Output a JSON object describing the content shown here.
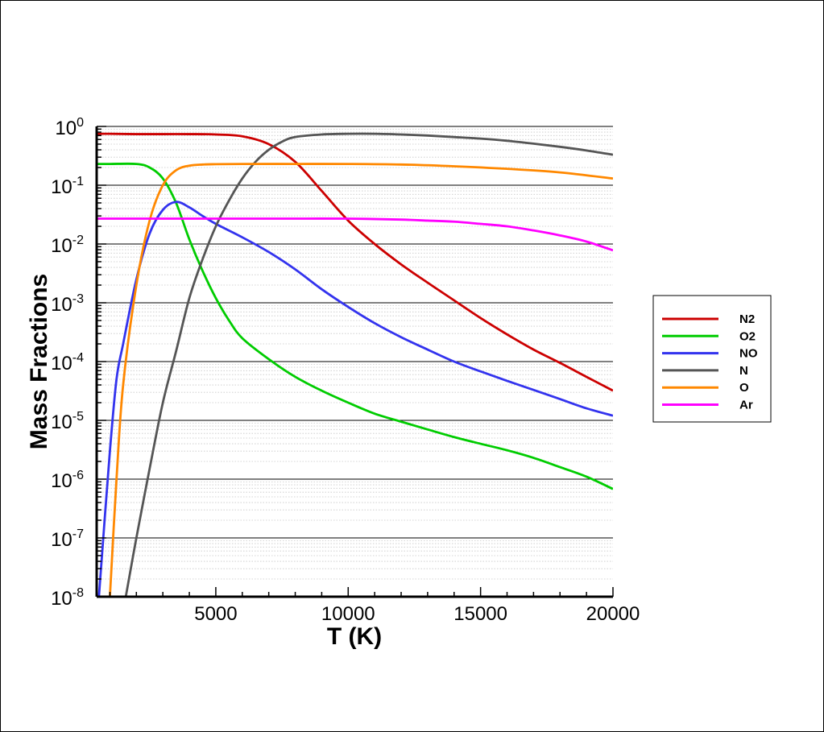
{
  "chart_data": {
    "type": "line",
    "xlabel": "T (K)",
    "ylabel": "Mass Fractions",
    "xlim": [
      500,
      20000
    ],
    "ylim": [
      1e-08,
      1
    ],
    "yscale": "log",
    "xticks": [
      {
        "value": 5000,
        "label": "5000"
      },
      {
        "value": 10000,
        "label": "10000"
      },
      {
        "value": 15000,
        "label": "15000"
      },
      {
        "value": 20000,
        "label": "20000"
      }
    ],
    "yticks": [
      {
        "value": 1,
        "base": "10",
        "exp": "0"
      },
      {
        "value": 0.1,
        "base": "10",
        "exp": "-1"
      },
      {
        "value": 0.01,
        "base": "10",
        "exp": "-2"
      },
      {
        "value": 0.001,
        "base": "10",
        "exp": "-3"
      },
      {
        "value": 0.0001,
        "base": "10",
        "exp": "-4"
      },
      {
        "value": 1e-05,
        "base": "10",
        "exp": "-5"
      },
      {
        "value": 1e-06,
        "base": "10",
        "exp": "-6"
      },
      {
        "value": 1e-07,
        "base": "10",
        "exp": "-7"
      },
      {
        "value": 1e-08,
        "base": "10",
        "exp": "-8"
      }
    ],
    "grid": "horizontal major and minor lines",
    "legend_position": "right",
    "series": [
      {
        "name": "N2",
        "color": "#cc0000",
        "x": [
          500,
          1000,
          2000,
          3000,
          4000,
          5000,
          6000,
          7000,
          8000,
          9000,
          10000,
          11000,
          12000,
          13000,
          14000,
          15000,
          16000,
          17000,
          18000,
          19000,
          20000
        ],
        "y": [
          0.75,
          0.75,
          0.74,
          0.74,
          0.74,
          0.73,
          0.68,
          0.5,
          0.25,
          0.08,
          0.025,
          0.01,
          0.0045,
          0.0022,
          0.0011,
          0.00055,
          0.00029,
          0.00016,
          9.5e-05,
          5.5e-05,
          3.2e-05
        ]
      },
      {
        "name": "O2",
        "color": "#00cc00",
        "x": [
          500,
          1000,
          2000,
          2500,
          3000,
          3500,
          4000,
          4500,
          5000,
          5500,
          6000,
          7000,
          8000,
          9000,
          10000,
          11000,
          12000,
          13000,
          14000,
          15000,
          16000,
          17000,
          18000,
          19000,
          20000
        ],
        "y": [
          0.23,
          0.23,
          0.23,
          0.2,
          0.13,
          0.05,
          0.012,
          0.0035,
          0.0012,
          0.0005,
          0.00025,
          0.00011,
          5.5e-05,
          3.2e-05,
          2e-05,
          1.3e-05,
          9.5e-06,
          7e-06,
          5.2e-06,
          4e-06,
          3.1e-06,
          2.3e-06,
          1.6e-06,
          1.1e-06,
          6.8e-07
        ]
      },
      {
        "name": "NO",
        "color": "#3333ee",
        "x": [
          500,
          750,
          1000,
          1250,
          1500,
          2000,
          2500,
          3000,
          3500,
          4000,
          4500,
          5000,
          6000,
          7000,
          8000,
          9000,
          10000,
          11000,
          12000,
          13000,
          14000,
          15000,
          16000,
          17000,
          18000,
          19000,
          20000
        ],
        "y": [
          3e-09,
          1e-07,
          3e-06,
          5e-05,
          0.0002,
          0.0025,
          0.015,
          0.038,
          0.052,
          0.042,
          0.03,
          0.022,
          0.013,
          0.0073,
          0.0037,
          0.0017,
          0.00085,
          0.00045,
          0.00026,
          0.00016,
          0.0001,
          6.8e-05,
          4.7e-05,
          3.3e-05,
          2.3e-05,
          1.6e-05,
          1.2e-05
        ]
      },
      {
        "name": "N",
        "color": "#555555",
        "x": [
          1600,
          2000,
          2500,
          3000,
          3500,
          4000,
          4500,
          5000,
          5500,
          6000,
          6500,
          7000,
          7500,
          8000,
          9000,
          10000,
          11000,
          12000,
          13000,
          14000,
          15000,
          16000,
          17000,
          18000,
          19000,
          20000
        ],
        "y": [
          1e-08,
          1e-07,
          1.5e-06,
          2e-05,
          0.00015,
          0.0012,
          0.0055,
          0.02,
          0.055,
          0.13,
          0.25,
          0.4,
          0.55,
          0.66,
          0.73,
          0.75,
          0.75,
          0.73,
          0.7,
          0.66,
          0.62,
          0.57,
          0.51,
          0.45,
          0.39,
          0.33
        ]
      },
      {
        "name": "O",
        "color": "#ff8800",
        "x": [
          1000,
          1250,
          1500,
          2000,
          2500,
          3000,
          3500,
          4000,
          4500,
          5000,
          6000,
          8000,
          10000,
          12000,
          14000,
          16000,
          18000,
          20000
        ],
        "y": [
          1e-08,
          1e-06,
          4e-05,
          0.002,
          0.025,
          0.1,
          0.18,
          0.215,
          0.225,
          0.228,
          0.23,
          0.23,
          0.23,
          0.225,
          0.21,
          0.19,
          0.165,
          0.13
        ]
      },
      {
        "name": "Ar",
        "color": "#ff00ff",
        "x": [
          500,
          2000,
          4000,
          6000,
          8000,
          10000,
          12000,
          13000,
          14000,
          15000,
          16000,
          17000,
          18000,
          19000,
          20000
        ],
        "y": [
          0.027,
          0.027,
          0.027,
          0.027,
          0.027,
          0.027,
          0.026,
          0.025,
          0.024,
          0.022,
          0.02,
          0.017,
          0.014,
          0.011,
          0.0078
        ]
      }
    ]
  }
}
